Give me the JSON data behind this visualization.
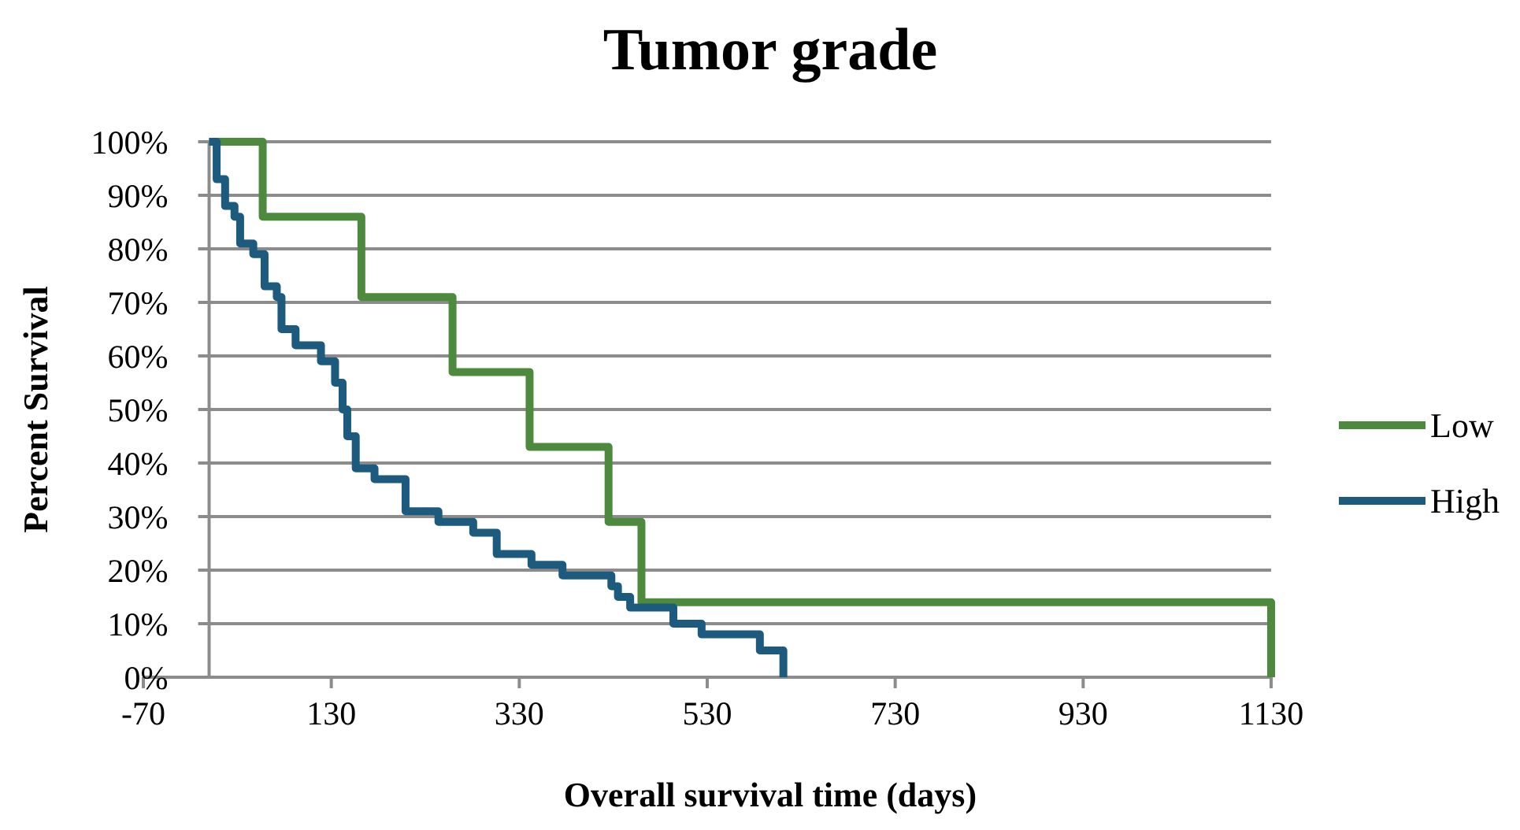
{
  "chart_data": {
    "type": "step",
    "title": "Tumor grade",
    "xlabel": "Overall survival time (days)",
    "ylabel": "Percent Survival",
    "xlim": [
      -70,
      1130
    ],
    "xticks": [
      -70,
      130,
      330,
      530,
      730,
      930,
      1130
    ],
    "ylim": [
      0,
      100
    ],
    "yticks": [
      {
        "value": 0,
        "label": "0%"
      },
      {
        "value": 10,
        "label": "10%"
      },
      {
        "value": 20,
        "label": "20%"
      },
      {
        "value": 30,
        "label": "30%"
      },
      {
        "value": 40,
        "label": "40%"
      },
      {
        "value": 50,
        "label": "50%"
      },
      {
        "value": 60,
        "label": "60%"
      },
      {
        "value": 70,
        "label": "70%"
      },
      {
        "value": 80,
        "label": "80%"
      },
      {
        "value": 90,
        "label": "90%"
      },
      {
        "value": 100,
        "label": "100%"
      }
    ],
    "grid": "y",
    "legend": "right",
    "marker": "none",
    "line_style": "solid",
    "series": [
      {
        "name": "Low",
        "color": "#4e8a3e",
        "x": [
          0,
          57,
          162,
          259,
          341,
          425,
          460,
          1130
        ],
        "values": [
          100,
          86,
          71,
          57,
          43,
          29,
          14,
          0
        ]
      },
      {
        "name": "High",
        "color": "#1c5a7e",
        "x": [
          0,
          8,
          17,
          27,
          33,
          47,
          59,
          72,
          77,
          92,
          119,
          134,
          142,
          147,
          156,
          176,
          209,
          244,
          281,
          306,
          343,
          376,
          428,
          435,
          448,
          494,
          524,
          586,
          611
        ],
        "values": [
          100,
          93,
          88,
          86,
          81,
          79,
          73,
          71,
          65,
          62,
          59,
          55,
          50,
          45,
          39,
          37,
          31,
          29,
          27,
          23,
          21,
          19,
          17,
          15,
          13,
          10,
          8,
          5,
          0
        ]
      }
    ]
  }
}
